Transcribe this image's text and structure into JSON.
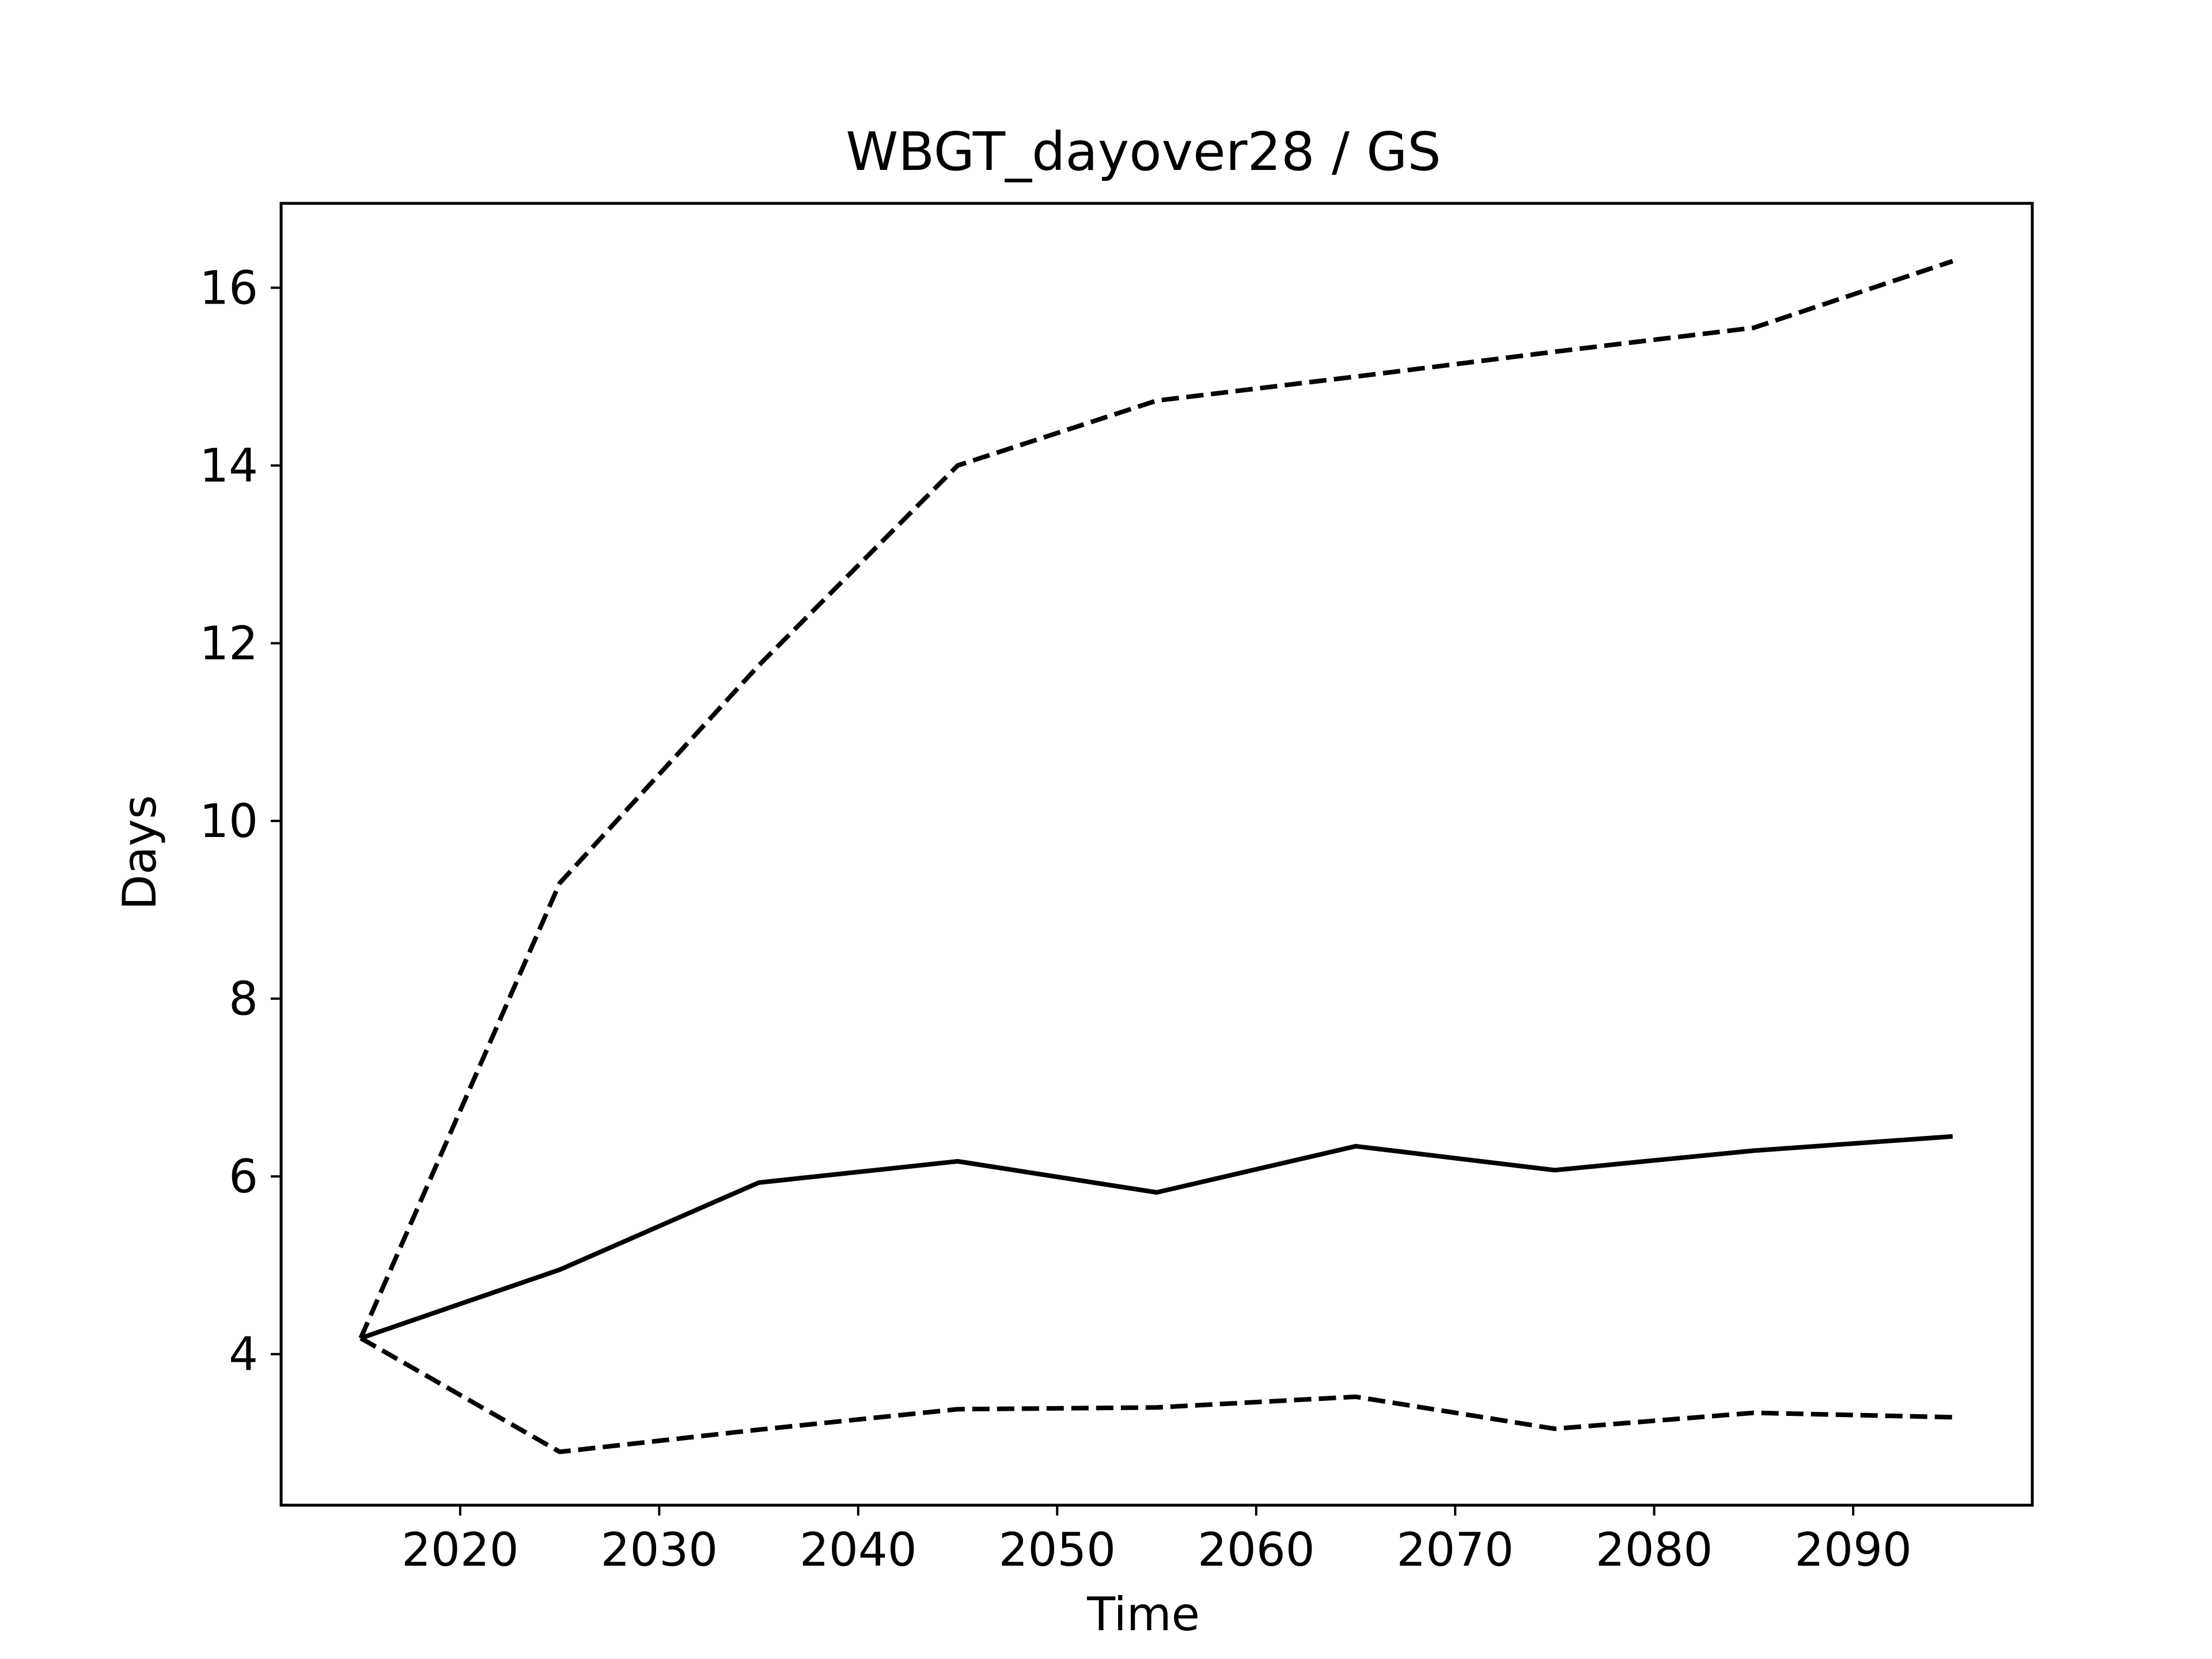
{
  "chart_data": {
    "type": "line",
    "title": "WBGT_dayover28 / GS",
    "xlabel": "Time",
    "ylabel": "Days",
    "xlim": [
      2011,
      2099
    ],
    "ylim": [
      2.3,
      16.95
    ],
    "xticks": [
      2020,
      2030,
      2040,
      2050,
      2060,
      2070,
      2080,
      2090
    ],
    "yticks": [
      4,
      6,
      8,
      10,
      12,
      14,
      16
    ],
    "grid": false,
    "legend": "none",
    "line_color": "#000000",
    "x": [
      2015,
      2025,
      2035,
      2045,
      2055,
      2065,
      2075,
      2085,
      2095
    ],
    "series": [
      {
        "style": "dashed",
        "values": [
          4.18,
          9.3,
          11.75,
          14.0,
          14.73,
          15.0,
          15.28,
          15.55,
          16.3
        ]
      },
      {
        "style": "solid",
        "values": [
          4.18,
          4.95,
          5.93,
          6.17,
          5.82,
          6.34,
          6.07,
          6.29,
          6.45
        ]
      },
      {
        "style": "dashed",
        "values": [
          4.18,
          2.9,
          3.15,
          3.38,
          3.4,
          3.52,
          3.16,
          3.34,
          3.29
        ]
      }
    ]
  }
}
